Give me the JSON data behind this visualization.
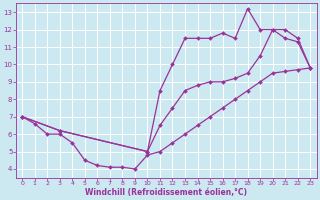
{
  "xlabel": "Windchill (Refroidissement éolien,°C)",
  "bg_color": "#cce8f0",
  "grid_color": "#ffffff",
  "line_color": "#993399",
  "xlim": [
    -0.5,
    23.5
  ],
  "ylim": [
    3.5,
    13.5
  ],
  "xticks": [
    0,
    1,
    2,
    3,
    4,
    5,
    6,
    7,
    8,
    9,
    10,
    11,
    12,
    13,
    14,
    15,
    16,
    17,
    18,
    19,
    20,
    21,
    22,
    23
  ],
  "yticks": [
    4,
    5,
    6,
    7,
    8,
    9,
    10,
    11,
    12,
    13
  ],
  "series": [
    {
      "x": [
        0,
        1,
        2,
        3,
        4,
        5,
        6,
        7,
        8,
        9,
        10,
        11,
        12,
        13,
        14,
        15,
        16,
        17,
        18,
        19,
        20,
        21,
        22,
        23
      ],
      "y": [
        7.0,
        6.6,
        6.0,
        6.0,
        5.5,
        4.5,
        4.2,
        4.1,
        4.1,
        4.0,
        4.8,
        5.0,
        5.5,
        6.0,
        6.5,
        7.0,
        7.5,
        8.0,
        8.5,
        9.0,
        9.5,
        9.6,
        9.7,
        9.8
      ]
    },
    {
      "x": [
        0,
        3,
        10,
        11,
        12,
        13,
        14,
        15,
        16,
        17,
        18,
        19,
        20,
        21,
        22,
        23
      ],
      "y": [
        7.0,
        6.2,
        5.0,
        8.5,
        10.0,
        11.5,
        11.5,
        11.5,
        11.8,
        11.5,
        13.2,
        12.0,
        12.0,
        11.5,
        11.3,
        9.8
      ]
    },
    {
      "x": [
        0,
        3,
        10,
        11,
        12,
        13,
        14,
        15,
        16,
        17,
        18,
        19,
        20,
        21,
        22,
        23
      ],
      "y": [
        7.0,
        6.2,
        5.0,
        6.5,
        7.5,
        8.5,
        8.8,
        9.0,
        9.0,
        9.2,
        9.5,
        10.5,
        12.0,
        12.0,
        11.5,
        9.8
      ]
    }
  ]
}
